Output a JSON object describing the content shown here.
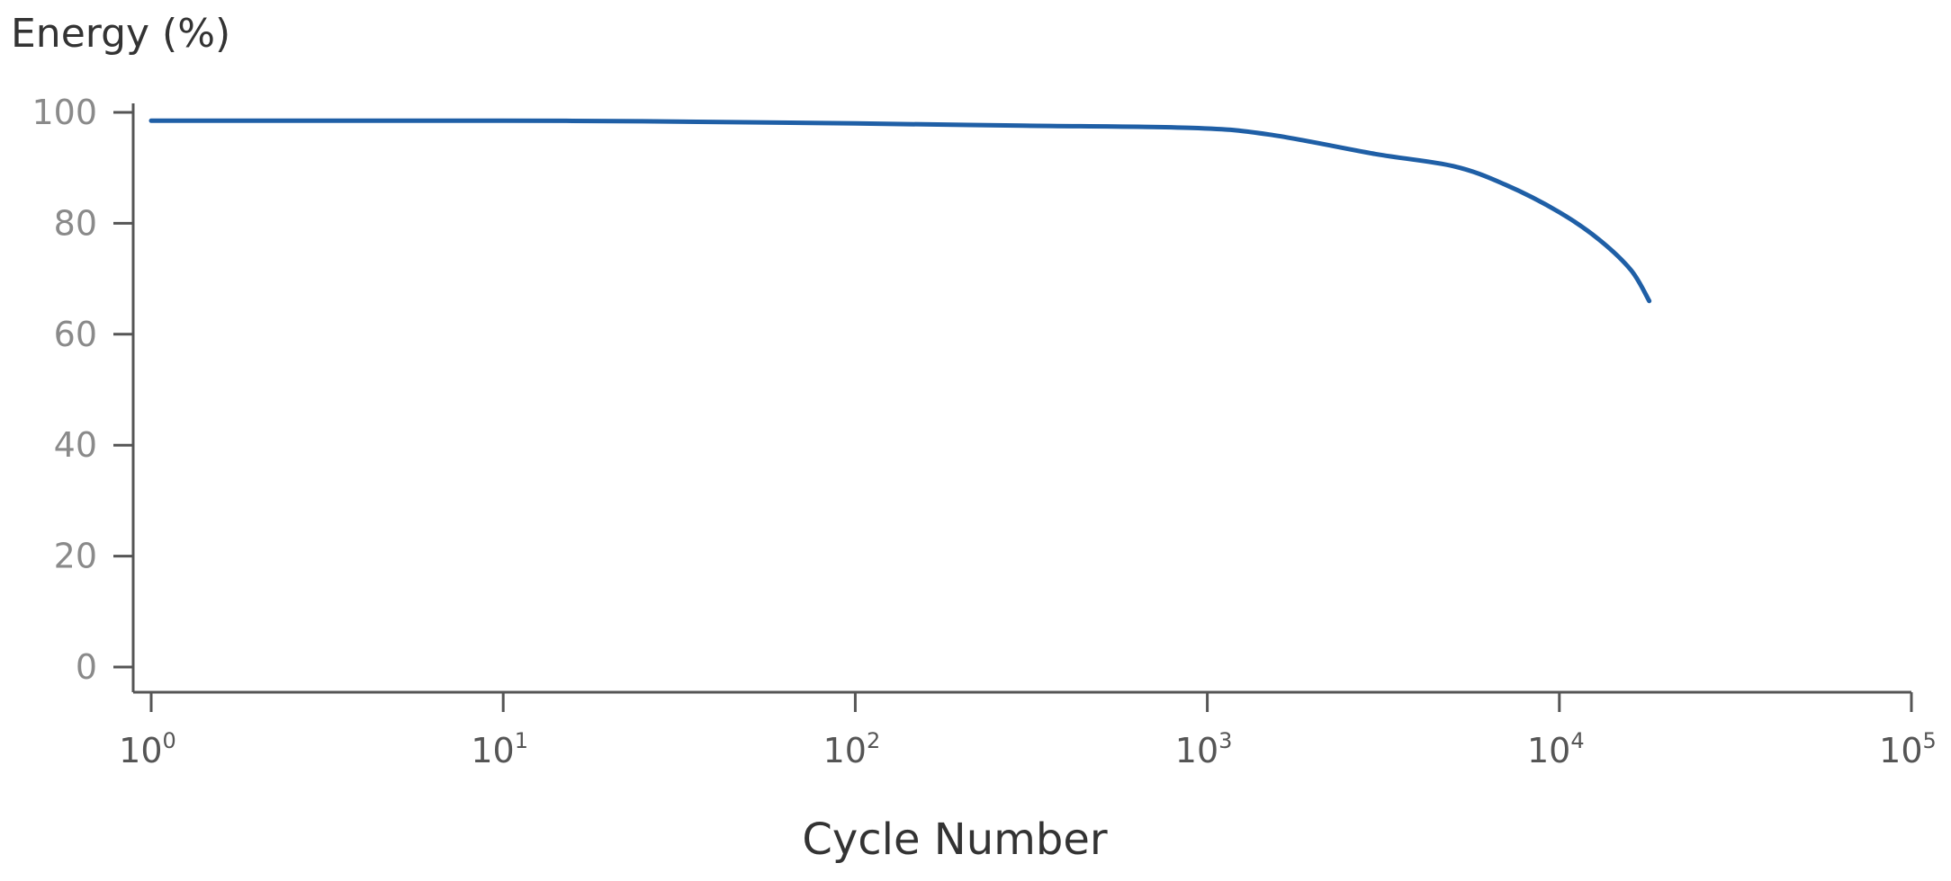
{
  "chart_data": {
    "type": "line",
    "title": "",
    "xlabel": "Cycle Number",
    "ylabel": "Energy (%)",
    "x_scale": "log",
    "xlim": [
      1,
      100000
    ],
    "ylim": [
      0,
      100
    ],
    "grid": false,
    "legend": "none",
    "y_ticks": [
      0,
      20,
      40,
      60,
      80,
      100
    ],
    "x_ticks": [
      {
        "value": 1,
        "base": "10",
        "exp": "0"
      },
      {
        "value": 10,
        "base": "10",
        "exp": "1"
      },
      {
        "value": 100,
        "base": "10",
        "exp": "2"
      },
      {
        "value": 1000,
        "base": "10",
        "exp": "3"
      },
      {
        "value": 10000,
        "base": "10",
        "exp": "4"
      },
      {
        "value": 100000,
        "base": "10",
        "exp": "5"
      }
    ],
    "series": [
      {
        "color": "#1f5fa6",
        "x": [
          1,
          3,
          10,
          25,
          100,
          300,
          900,
          1500,
          3000,
          5000,
          7000,
          10000,
          13000,
          16000,
          18000
        ],
        "y": [
          98.5,
          98.5,
          98.5,
          98.4,
          98.0,
          97.6,
          97.2,
          96.0,
          92.5,
          90.3,
          87.0,
          82.0,
          77.0,
          71.5,
          66.0
        ]
      }
    ]
  }
}
